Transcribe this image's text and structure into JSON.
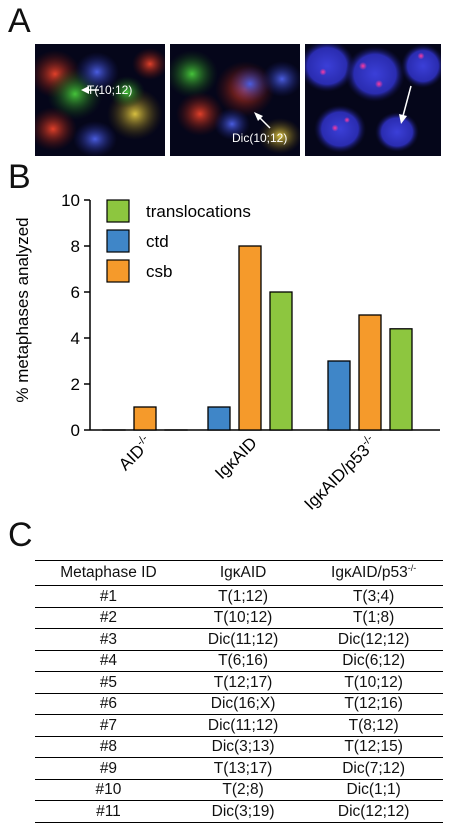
{
  "panels": {
    "a": "A",
    "b": "B",
    "c": "C"
  },
  "micrographs": [
    {
      "label": "T(10;12)"
    },
    {
      "label": "Dic(10;12)"
    },
    {
      "label": ""
    }
  ],
  "chart_data": {
    "type": "bar",
    "categories": [
      "AID-/-",
      "IgκAID",
      "IgκAID/p53-/-"
    ],
    "category_labels": [
      {
        "base": "AID",
        "sup": "-/-"
      },
      {
        "base": "IgκAID",
        "sup": ""
      },
      {
        "base": "IgκAID/p53",
        "sup": "-/-"
      }
    ],
    "series": [
      {
        "name": "ctd",
        "color": "#3f86c8",
        "values": [
          0,
          1,
          3
        ]
      },
      {
        "name": "csb",
        "color": "#f59a2b",
        "values": [
          1,
          8,
          5
        ]
      },
      {
        "name": "translocations",
        "color": "#8dc63f",
        "values": [
          0,
          6,
          4.4
        ]
      }
    ],
    "legend_order": [
      "translocations",
      "ctd",
      "csb"
    ],
    "legend_position": "top-left",
    "ylabel": "% metaphases analyzed",
    "xlabel": "",
    "ylim": [
      0,
      10
    ],
    "yticks": [
      0,
      2,
      4,
      6,
      8,
      10
    ],
    "grid": false
  },
  "table": {
    "headers": [
      {
        "base": "Metaphase ID",
        "sup": ""
      },
      {
        "base": "IgκAID",
        "sup": ""
      },
      {
        "base": "IgκAID/p53",
        "sup": "-/-"
      }
    ],
    "rows": [
      [
        "#1",
        "T(1;12)",
        "T(3;4)"
      ],
      [
        "#2",
        "T(10;12)",
        "T(1;8)"
      ],
      [
        "#3",
        "Dic(11;12)",
        "Dic(12;12)"
      ],
      [
        "#4",
        "T(6;16)",
        "Dic(6;12)"
      ],
      [
        "#5",
        "T(12;17)",
        "T(10;12)"
      ],
      [
        "#6",
        "Dic(16;X)",
        "T(12;16)"
      ],
      [
        "#7",
        "Dic(11;12)",
        "T(8;12)"
      ],
      [
        "#8",
        "Dic(3;13)",
        "T(12;15)"
      ],
      [
        "#9",
        "T(13;17)",
        "Dic(7;12)"
      ],
      [
        "#10",
        "T(2;8)",
        "Dic(1;1)"
      ],
      [
        "#11",
        "Dic(3;19)",
        "Dic(12;12)"
      ]
    ]
  }
}
